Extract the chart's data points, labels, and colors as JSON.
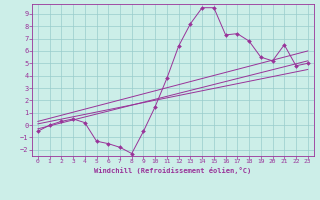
{
  "xlabel": "Windchill (Refroidissement éolien,°C)",
  "bg_color": "#cceee8",
  "grid_color": "#99cccc",
  "line_color": "#993399",
  "xlim": [
    -0.5,
    23.5
  ],
  "ylim": [
    -2.5,
    9.8
  ],
  "xticks": [
    0,
    1,
    2,
    3,
    4,
    5,
    6,
    7,
    8,
    9,
    10,
    11,
    12,
    13,
    14,
    15,
    16,
    17,
    18,
    19,
    20,
    21,
    22,
    23
  ],
  "yticks": [
    -2,
    -1,
    0,
    1,
    2,
    3,
    4,
    5,
    6,
    7,
    8,
    9
  ],
  "line1_x": [
    0,
    1,
    2,
    3,
    4,
    5,
    6,
    7,
    8,
    9,
    10,
    11,
    12,
    13,
    14,
    15,
    16,
    17,
    18,
    19,
    20,
    21,
    22,
    23
  ],
  "line1_y": [
    -0.5,
    0.0,
    0.3,
    0.5,
    0.2,
    -1.3,
    -1.5,
    -1.8,
    -2.3,
    -0.5,
    1.5,
    3.8,
    6.4,
    8.2,
    9.5,
    9.5,
    7.3,
    7.4,
    6.8,
    5.5,
    5.2,
    6.5,
    4.8,
    5.0
  ],
  "line2_x": [
    0,
    23
  ],
  "line2_y": [
    -0.3,
    5.2
  ],
  "line3_x": [
    0,
    23
  ],
  "line3_y": [
    0.3,
    6.0
  ],
  "line4_x": [
    0,
    23
  ],
  "line4_y": [
    0.1,
    4.5
  ]
}
